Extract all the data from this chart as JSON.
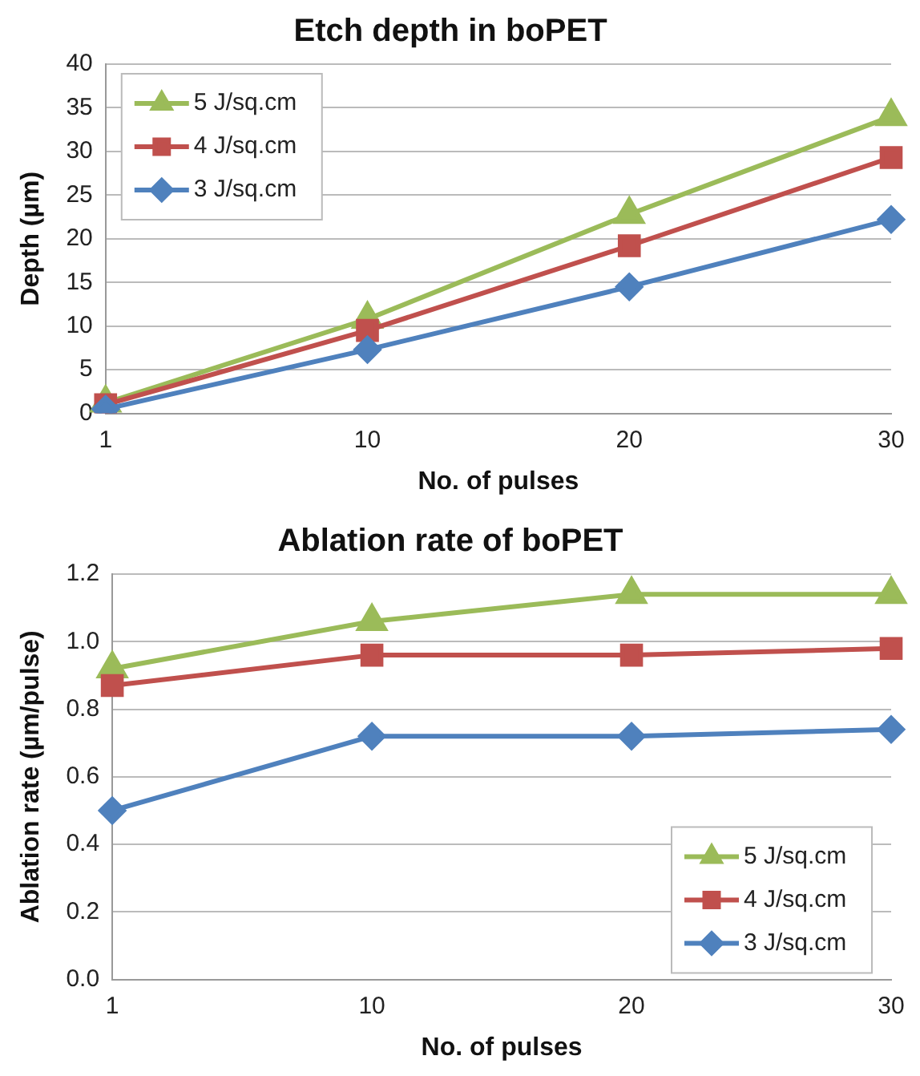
{
  "chart_data": [
    {
      "type": "line",
      "title": "Etch depth in boPET",
      "xlabel": "No. of pulses",
      "ylabel": "Depth (µm)",
      "categories": [
        "1",
        "10",
        "20",
        "30"
      ],
      "ylim": [
        0,
        40
      ],
      "yticks": [
        0,
        5,
        10,
        15,
        20,
        25,
        30,
        35,
        40
      ],
      "grid": "y",
      "legend": "top left",
      "series": [
        {
          "name": "5 J/sq.cm",
          "color": "#9bbb59",
          "marker": "triangle",
          "values": [
            1.2,
            10.8,
            22.8,
            34.0
          ]
        },
        {
          "name": "4 J/sq.cm",
          "color": "#c0504d",
          "marker": "square",
          "values": [
            1.0,
            9.5,
            19.2,
            29.3
          ]
        },
        {
          "name": "3 J/sq.cm",
          "color": "#4f81bd",
          "marker": "diamond",
          "values": [
            0.5,
            7.3,
            14.5,
            22.2
          ]
        }
      ]
    },
    {
      "type": "line",
      "title": "Ablation rate of boPET",
      "xlabel": "No. of pulses",
      "ylabel": "Ablation rate (µm/pulse)",
      "categories": [
        "1",
        "10",
        "20",
        "30"
      ],
      "ylim": [
        0,
        1.2
      ],
      "yticks": [
        {
          "value": 0,
          "label": "0.0"
        },
        {
          "value": 0.2,
          "label": "0.2"
        },
        {
          "value": 0.4,
          "label": "0.4"
        },
        {
          "value": 0.6,
          "label": "0.6"
        },
        {
          "value": 0.8,
          "label": "0.8"
        },
        {
          "value": 1.0,
          "label": "1.0"
        },
        {
          "value": 1.2,
          "label": "1.2"
        }
      ],
      "grid": "y",
      "legend": "bottom right",
      "series": [
        {
          "name": "5 J/sq.cm",
          "color": "#9bbb59",
          "marker": "triangle",
          "values": [
            0.92,
            1.06,
            1.14,
            1.14
          ]
        },
        {
          "name": "4 J/sq.cm",
          "color": "#c0504d",
          "marker": "square",
          "values": [
            0.87,
            0.96,
            0.96,
            0.98
          ]
        },
        {
          "name": "3 J/sq.cm",
          "color": "#4f81bd",
          "marker": "diamond",
          "values": [
            0.5,
            0.72,
            0.72,
            0.74
          ]
        }
      ]
    }
  ]
}
